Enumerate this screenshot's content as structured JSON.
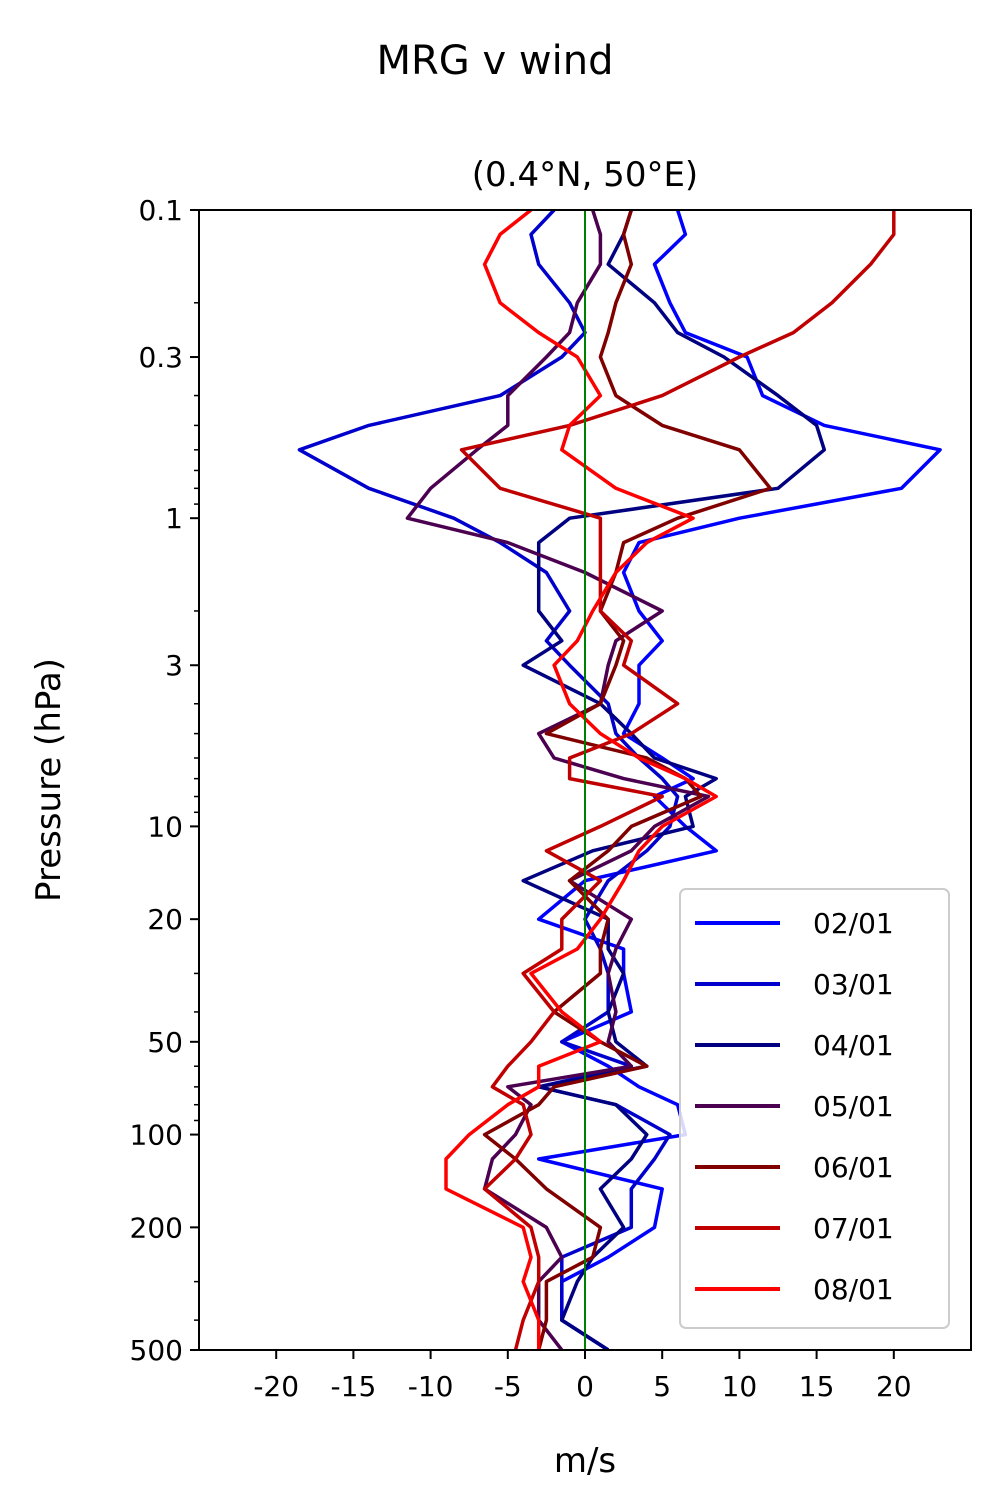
{
  "chart_data": {
    "type": "line",
    "title": "MRG v wind",
    "subtitle": "(0.4°N, 50°E)",
    "xlabel": "m/s",
    "ylabel": "Pressure (hPa)",
    "xlim": [
      -25,
      25
    ],
    "ylim": [
      0.1,
      500
    ],
    "y_scale": "log",
    "y_inverted": true,
    "x_ticks": [
      -20,
      -15,
      -10,
      -5,
      0,
      5,
      10,
      15,
      20
    ],
    "x_tick_labels": [
      "-20",
      "-15",
      "-10",
      "-5",
      "0",
      "5",
      "10",
      "15",
      "20"
    ],
    "y_ticks": [
      0.1,
      0.3,
      1,
      3,
      10,
      20,
      50,
      100,
      200,
      500
    ],
    "y_tick_labels": [
      "0.1",
      "0.3",
      "1",
      "3",
      "10",
      "20",
      "50",
      "100",
      "200",
      "500"
    ],
    "zero_line_color": "#008000",
    "legend_position": "lower-right",
    "grid": false,
    "pressure_levels": [
      0.1,
      0.12,
      0.15,
      0.2,
      0.25,
      0.3,
      0.4,
      0.5,
      0.6,
      0.8,
      1.0,
      1.2,
      1.5,
      2.0,
      2.5,
      3.0,
      4.0,
      5.0,
      6.0,
      7.0,
      8.0,
      10.0,
      12.0,
      15.0,
      20.0,
      25.0,
      30.0,
      40.0,
      50.0,
      60.0,
      70.0,
      80.0,
      100.0,
      120.0,
      150.0,
      200.0,
      250.0,
      300.0,
      400.0,
      500.0
    ],
    "series": [
      {
        "name": "02/01",
        "color": "#0000ff",
        "values": [
          6,
          6.5,
          4.5,
          5.5,
          6.5,
          10.5,
          11.5,
          15.5,
          23,
          20.5,
          10,
          3.5,
          2.5,
          3.5,
          5,
          3.5,
          3.5,
          2.5,
          5,
          7,
          4.5,
          6.5,
          8.5,
          0,
          -3,
          2.5,
          2.5,
          3,
          -1.5,
          1.5,
          3.5,
          6,
          6.5,
          -3,
          5,
          4.5,
          1.5,
          -1.5,
          -1.5,
          1.5
        ]
      },
      {
        "name": "03/01",
        "color": "#0000cc",
        "values": [
          -2,
          -3.5,
          -3,
          -1,
          0,
          -1.5,
          -5.5,
          -14,
          -18.5,
          -14,
          -8.5,
          -5.5,
          -2.5,
          -1,
          -2.5,
          -1,
          1.5,
          2,
          3.5,
          5,
          6,
          5.5,
          4,
          1.5,
          0,
          1,
          1.5,
          1.5,
          -1.5,
          3,
          -3,
          2,
          5.5,
          4.5,
          3,
          3,
          -1.5,
          -1.5,
          -1.5,
          1.5
        ]
      },
      {
        "name": "04/01",
        "color": "#000080",
        "values": [
          3,
          2.5,
          1.5,
          4.5,
          6,
          9,
          12.5,
          15,
          15.5,
          12.5,
          -1,
          -3,
          -3,
          -3,
          -1.5,
          -4,
          1,
          3,
          4.5,
          8.5,
          6.5,
          7,
          0.5,
          -4,
          1.5,
          1.5,
          2.5,
          1.5,
          2,
          4,
          -3,
          2,
          4,
          3,
          1,
          2.5,
          0.5,
          -0.5,
          -1.5,
          1.5
        ]
      },
      {
        "name": "05/01",
        "color": "#4b0050",
        "values": [
          0.5,
          1,
          1,
          -0.5,
          -1,
          -2.5,
          -5,
          -5,
          -7,
          -10,
          -11.5,
          -5,
          0,
          5,
          2,
          1.5,
          1,
          -3,
          -2,
          2.5,
          8,
          4.5,
          3,
          -1,
          3,
          2,
          1.5,
          2,
          1.5,
          3,
          -5,
          -3.5,
          -4.5,
          -6,
          -6.5,
          -2.5,
          -1.5,
          -3,
          -3,
          -1.5
        ]
      },
      {
        "name": "06/01",
        "color": "#800000",
        "values": [
          3,
          2.5,
          3,
          2,
          1.5,
          1,
          2,
          5,
          10,
          12,
          6,
          2.5,
          2,
          1,
          2.5,
          2,
          1,
          -2.5,
          4,
          6.5,
          7.5,
          3,
          1.5,
          -1,
          1.5,
          1,
          1,
          -2,
          1,
          4,
          -2,
          -3,
          -6.5,
          -4.5,
          -2.5,
          1,
          0.5,
          -2.5,
          -2.5,
          -3
        ]
      },
      {
        "name": "07/01",
        "color": "#c00000",
        "values": [
          20,
          20,
          18.5,
          16,
          13.5,
          10,
          5,
          -1,
          -8,
          -5.5,
          1,
          1,
          1,
          1,
          3,
          2.5,
          6,
          3,
          -1,
          -1,
          5,
          1,
          -2.5,
          1,
          -1.5,
          -1.5,
          -4,
          -2,
          -3.5,
          -5,
          -6,
          -4,
          -3.5,
          -4.5,
          -6.5,
          -3.5,
          -3,
          -3,
          -4,
          -4.5
        ]
      },
      {
        "name": "08/01",
        "color": "#ff0000",
        "values": [
          -3.5,
          -5.5,
          -6.5,
          -5.5,
          -3,
          -0.5,
          1,
          -1,
          -1.5,
          2,
          7,
          4,
          2,
          0.5,
          -0.5,
          -2,
          -1,
          1,
          3.5,
          6.5,
          8.5,
          5,
          3.5,
          2.5,
          1,
          -0.5,
          -3.5,
          -1.5,
          1,
          -3,
          -3,
          -5,
          -7.5,
          -9,
          -9,
          -4,
          -3.5,
          -4,
          -3,
          -3
        ]
      }
    ]
  }
}
